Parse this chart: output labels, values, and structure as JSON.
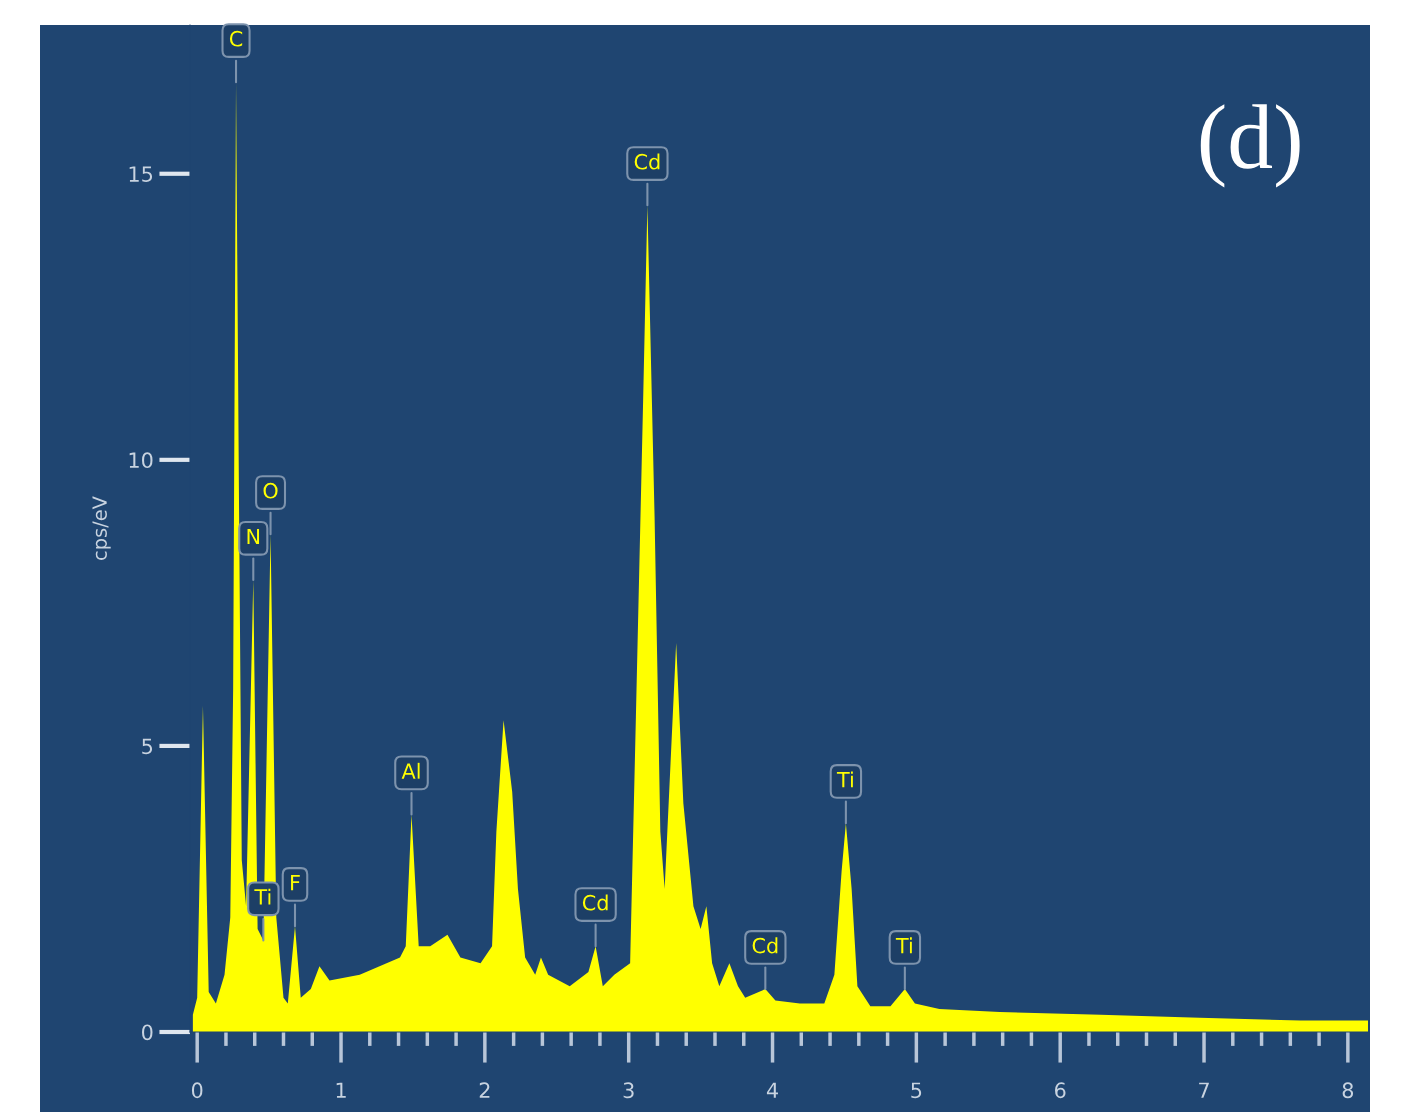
{
  "chart_data": {
    "type": "area",
    "ylabel": "cps/eV",
    "annotations": [
      "(d)",
      {
        "text": "C",
        "x": 0.27,
        "y": 16.6
      },
      {
        "text": "N",
        "x": 0.39,
        "y": 7.9
      },
      {
        "text": "O",
        "x": 0.51,
        "y": 8.7
      },
      {
        "text": "Ti",
        "x": 0.46,
        "y": 1.6
      },
      {
        "text": "F",
        "x": 0.68,
        "y": 1.85
      },
      {
        "text": "Al",
        "x": 1.49,
        "y": 3.8
      },
      {
        "text": "Cd",
        "x": 2.77,
        "y": 1.5
      },
      {
        "text": "Cd",
        "x": 3.13,
        "y": 14.45
      },
      {
        "text": "Cd",
        "x": 3.95,
        "y": 0.75
      },
      {
        "text": "Ti",
        "x": 4.51,
        "y": 3.65
      },
      {
        "text": "Ti",
        "x": 4.92,
        "y": 0.75
      }
    ],
    "series": [
      {
        "color": "#ffff00",
        "x": [
          -0.03,
          0.0,
          0.04,
          0.08,
          0.13,
          0.19,
          0.23,
          0.25,
          0.27,
          0.29,
          0.31,
          0.34,
          0.39,
          0.42,
          0.46,
          0.51,
          0.55,
          0.6,
          0.63,
          0.68,
          0.72,
          0.79,
          0.85,
          0.92,
          1.13,
          1.41,
          1.45,
          1.49,
          1.54,
          1.62,
          1.74,
          1.83,
          1.97,
          2.05,
          2.08,
          2.13,
          2.19,
          2.23,
          2.28,
          2.35,
          2.39,
          2.44,
          2.59,
          2.72,
          2.77,
          2.82,
          2.9,
          3.01,
          3.05,
          3.1,
          3.13,
          3.18,
          3.22,
          3.25,
          3.33,
          3.38,
          3.45,
          3.5,
          3.54,
          3.58,
          3.63,
          3.7,
          3.76,
          3.81,
          3.95,
          4.02,
          4.19,
          4.36,
          4.43,
          4.48,
          4.51,
          4.55,
          4.59,
          4.68,
          4.82,
          4.92,
          4.99,
          5.16,
          5.58,
          6.28,
          6.97,
          7.67,
          8.14
        ],
        "values": [
          0.3,
          0.6,
          5.7,
          0.7,
          0.5,
          1.0,
          2.0,
          6.0,
          16.6,
          9.5,
          3.0,
          2.2,
          7.9,
          1.8,
          1.6,
          8.7,
          2.0,
          0.6,
          0.5,
          1.85,
          0.6,
          0.75,
          1.15,
          0.9,
          1.0,
          1.3,
          1.5,
          3.8,
          1.5,
          1.5,
          1.7,
          1.3,
          1.2,
          1.5,
          3.5,
          5.45,
          4.2,
          2.5,
          1.3,
          1.0,
          1.3,
          1.0,
          0.8,
          1.05,
          1.5,
          0.8,
          1.0,
          1.2,
          5.5,
          11.0,
          14.45,
          9.0,
          3.5,
          2.5,
          6.8,
          4.0,
          2.2,
          1.8,
          2.2,
          1.2,
          0.8,
          1.2,
          0.8,
          0.6,
          0.75,
          0.55,
          0.5,
          0.5,
          1.0,
          2.8,
          3.65,
          2.5,
          0.8,
          0.45,
          0.45,
          0.75,
          0.5,
          0.4,
          0.35,
          0.3,
          0.25,
          0.2,
          0.2
        ]
      }
    ],
    "xlim": [
      -0.05,
      8.14
    ],
    "ylim": [
      0,
      17.6
    ],
    "xticks": [
      0,
      {
        "value": 0.2,
        "label": null
      },
      {
        "value": 0.4,
        "label": null
      },
      {
        "value": 0.6,
        "label": null
      },
      {
        "value": 0.8,
        "label": null
      },
      1,
      {
        "value": 1.2,
        "label": null
      },
      {
        "value": 1.4,
        "label": null
      },
      {
        "value": 1.6,
        "label": null
      },
      {
        "value": 1.8,
        "label": null
      },
      2,
      {
        "value": 2.2,
        "label": null
      },
      {
        "value": 2.4,
        "label": null
      },
      {
        "value": 2.6,
        "label": null
      },
      {
        "value": 2.8,
        "label": null
      },
      3,
      {
        "value": 3.2,
        "label": null
      },
      {
        "value": 3.4,
        "label": null
      },
      {
        "value": 3.6,
        "label": null
      },
      {
        "value": 3.8,
        "label": null
      },
      4,
      {
        "value": 4.2,
        "label": null
      },
      {
        "value": 4.4,
        "label": null
      },
      {
        "value": 4.6,
        "label": null
      },
      {
        "value": 4.8,
        "label": null
      },
      5,
      {
        "value": 5.2,
        "label": null
      },
      {
        "value": 5.4,
        "label": null
      },
      {
        "value": 5.6,
        "label": null
      },
      {
        "value": 5.8,
        "label": null
      },
      6,
      {
        "value": 6.2,
        "label": null
      },
      {
        "value": 6.4,
        "label": null
      },
      {
        "value": 6.6,
        "label": null
      },
      {
        "value": 6.8,
        "label": null
      },
      7,
      {
        "value": 7.2,
        "label": null
      },
      {
        "value": 7.4,
        "label": null
      },
      {
        "value": 7.6,
        "label": null
      },
      {
        "value": 7.8,
        "label": null
      },
      8
    ],
    "yticks": [
      0,
      5,
      10,
      15
    ],
    "grid": false
  }
}
